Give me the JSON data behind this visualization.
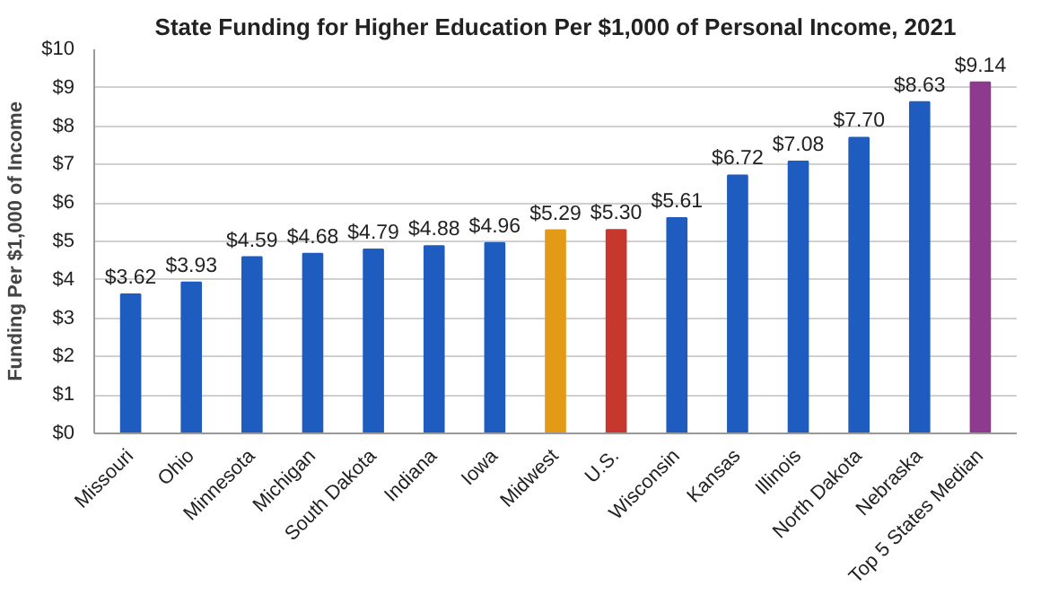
{
  "chart_data": {
    "type": "bar",
    "title": "State Funding for Higher Education Per $1,000 of Personal Income, 2021",
    "ylabel": "Funding Per $1,000 of Income",
    "categories": [
      "Missouri",
      "Ohio",
      "Minnesota",
      "Michigan",
      "South Dakota",
      "Indiana",
      "Iowa",
      "Midwest",
      "U.S.",
      "Wisconsin",
      "Kansas",
      "Illinois",
      "North Dakota",
      "Nebraska",
      "Top 5 States Median"
    ],
    "values": [
      3.62,
      3.93,
      4.59,
      4.68,
      4.79,
      4.88,
      4.96,
      5.29,
      5.3,
      5.61,
      6.72,
      7.08,
      7.7,
      8.63,
      9.14
    ],
    "colors": [
      "#1f5cbf",
      "#1f5cbf",
      "#1f5cbf",
      "#1f5cbf",
      "#1f5cbf",
      "#1f5cbf",
      "#1f5cbf",
      "#e39b17",
      "#c8372d",
      "#1f5cbf",
      "#1f5cbf",
      "#1f5cbf",
      "#1f5cbf",
      "#1f5cbf",
      "#8e3a8e"
    ],
    "value_labels": [
      "$3.62",
      "$3.93",
      "$4.59",
      "$4.68",
      "$4.79",
      "$4.88",
      "$4.96",
      "$5.29",
      "$5.30",
      "$5.61",
      "$6.72",
      "$7.08",
      "$7.70",
      "$8.63",
      "$9.14"
    ],
    "ylim": [
      0,
      10
    ],
    "yticks": [
      {
        "value": 0,
        "label": "$0"
      },
      {
        "value": 1,
        "label": "$1"
      },
      {
        "value": 2,
        "label": "$2"
      },
      {
        "value": 3,
        "label": "$3"
      },
      {
        "value": 4,
        "label": "$4"
      },
      {
        "value": 5,
        "label": "$5"
      },
      {
        "value": 6,
        "label": "$6"
      },
      {
        "value": 7,
        "label": "$7"
      },
      {
        "value": 8,
        "label": "$8"
      },
      {
        "value": 9,
        "label": "$9"
      },
      {
        "value": 10,
        "label": "$10"
      }
    ],
    "grid": "y"
  }
}
